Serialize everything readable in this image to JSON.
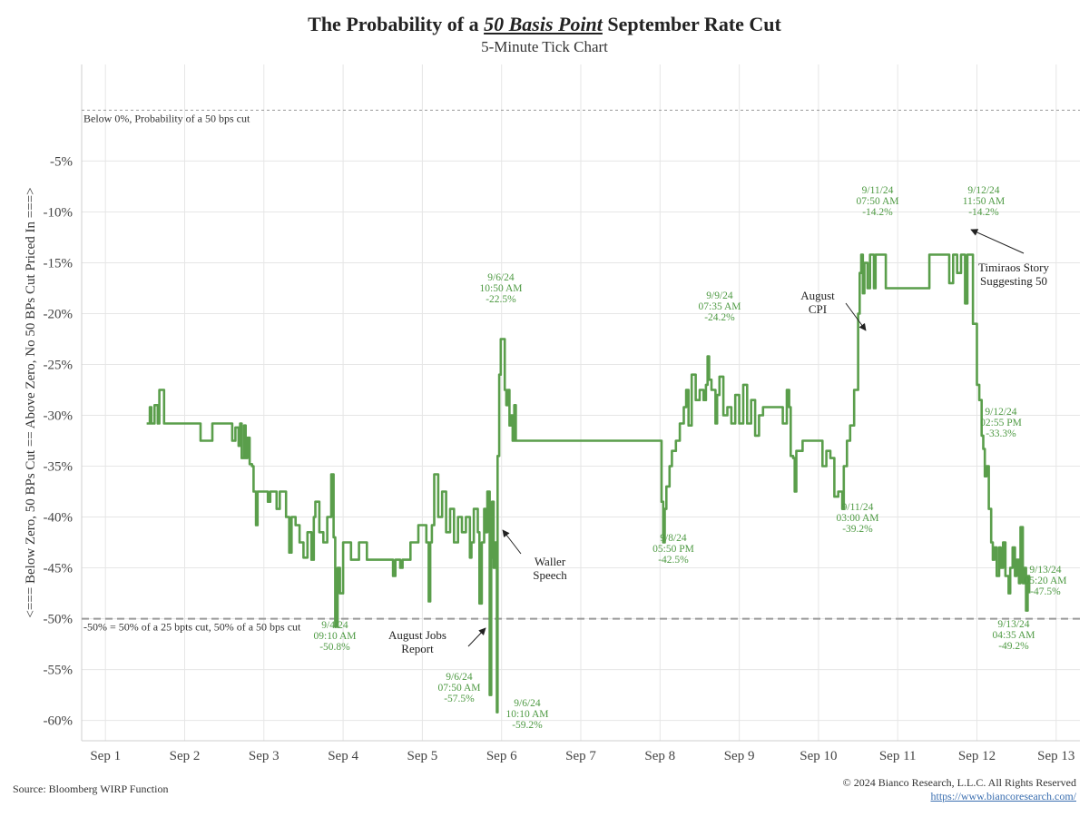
{
  "header": {
    "title_pre": "The Probability of a ",
    "title_em": "50 Basis Point",
    "title_post": " September Rate Cut",
    "subtitle": "5-Minute Tick Chart"
  },
  "footer": {
    "source": "Source: Bloomberg WIRP Function",
    "copyright": "© 2024 Bianco Research, L.L.C. All Rights Reserved",
    "website": "https://www.biancoresearch.com/"
  },
  "colors": {
    "line": "#5a9e4b",
    "annotation": "#4e9a43",
    "refline": "#9a9a9a",
    "grid": "#e6e6e6"
  },
  "chart_data": {
    "type": "line",
    "title": "The Probability of a 50 Basis Point September Rate Cut",
    "subtitle": "5-Minute Tick Chart",
    "ylabel": "<=== Below Zero, 50 BPs Cut == Above Zero, No 50 BPs Cut Priced In ===>",
    "xlabel": "",
    "x_categories": [
      "Sep 1",
      "Sep 2",
      "Sep 3",
      "Sep 4",
      "Sep 5",
      "Sep 6",
      "Sep 7",
      "Sep 8",
      "Sep 9",
      "Sep 10",
      "Sep 11",
      "Sep 12",
      "Sep 13"
    ],
    "x_range": [
      0.7,
      13.3
    ],
    "ylim": [
      -62,
      4.5
    ],
    "y_ticks": [
      -5,
      -10,
      -15,
      -20,
      -25,
      -30,
      -35,
      -40,
      -45,
      -50,
      -55,
      -60
    ],
    "y_tick_format": "{v}%",
    "grid": true,
    "reference_lines": [
      {
        "y": 0,
        "label": "Below 0%, Probability of a 50 bps cut"
      },
      {
        "y": -50,
        "label": "-50% = 50% of a 25 bpts cut, 50% of a 50 bps cut"
      }
    ],
    "series": [
      {
        "values": [
          [
            1.52,
            -30.8
          ],
          [
            1.56,
            -30.8
          ],
          [
            1.56,
            -29.2
          ],
          [
            1.58,
            -30.8
          ],
          [
            1.62,
            -30.8
          ],
          [
            1.62,
            -29.0
          ],
          [
            1.66,
            -30.8
          ],
          [
            1.68,
            -27.5
          ],
          [
            1.74,
            -27.5
          ],
          [
            1.74,
            -30.8
          ],
          [
            2.0,
            -30.8
          ],
          [
            2.2,
            -30.8
          ],
          [
            2.2,
            -32.5
          ],
          [
            2.35,
            -32.5
          ],
          [
            2.35,
            -30.8
          ],
          [
            2.6,
            -30.8
          ],
          [
            2.6,
            -32.5
          ],
          [
            2.64,
            -31.2
          ],
          [
            2.68,
            -33.0
          ],
          [
            2.7,
            -30.8
          ],
          [
            2.72,
            -34.2
          ],
          [
            2.75,
            -31.0
          ],
          [
            2.77,
            -34.2
          ],
          [
            2.79,
            -32.2
          ],
          [
            2.82,
            -34.8
          ],
          [
            2.85,
            -35.0
          ],
          [
            2.87,
            -37.5
          ],
          [
            2.9,
            -40.8
          ],
          [
            2.92,
            -37.5
          ],
          [
            3.0,
            -37.5
          ],
          [
            3.05,
            -38.5
          ],
          [
            3.08,
            -37.5
          ],
          [
            3.12,
            -37.5
          ],
          [
            3.16,
            -39.2
          ],
          [
            3.2,
            -37.5
          ],
          [
            3.25,
            -37.5
          ],
          [
            3.28,
            -40.0
          ],
          [
            3.32,
            -43.5
          ],
          [
            3.35,
            -40.0
          ],
          [
            3.4,
            -40.8
          ],
          [
            3.45,
            -42.5
          ],
          [
            3.5,
            -44.0
          ],
          [
            3.55,
            -41.5
          ],
          [
            3.6,
            -44.2
          ],
          [
            3.63,
            -40.0
          ],
          [
            3.65,
            -38.5
          ],
          [
            3.7,
            -41.5
          ],
          [
            3.75,
            -42.5
          ],
          [
            3.8,
            -40.0
          ],
          [
            3.85,
            -35.8
          ],
          [
            3.88,
            -42.0
          ],
          [
            3.9,
            -50.8
          ],
          [
            3.93,
            -45.0
          ],
          [
            3.96,
            -47.5
          ],
          [
            4.0,
            -42.5
          ],
          [
            4.05,
            -42.5
          ],
          [
            4.1,
            -44.2
          ],
          [
            4.2,
            -42.5
          ],
          [
            4.3,
            -44.2
          ],
          [
            4.5,
            -44.2
          ],
          [
            4.6,
            -44.2
          ],
          [
            4.63,
            -45.8
          ],
          [
            4.66,
            -44.2
          ],
          [
            4.7,
            -44.2
          ],
          [
            4.72,
            -45.0
          ],
          [
            4.75,
            -44.2
          ],
          [
            4.8,
            -44.2
          ],
          [
            4.85,
            -42.5
          ],
          [
            4.9,
            -42.5
          ],
          [
            4.95,
            -40.8
          ],
          [
            5.0,
            -40.8
          ],
          [
            5.05,
            -42.5
          ],
          [
            5.08,
            -48.3
          ],
          [
            5.1,
            -42.5
          ],
          [
            5.12,
            -40.8
          ],
          [
            5.15,
            -35.8
          ],
          [
            5.2,
            -40.0
          ],
          [
            5.25,
            -37.5
          ],
          [
            5.3,
            -41.5
          ],
          [
            5.35,
            -39.2
          ],
          [
            5.4,
            -42.5
          ],
          [
            5.45,
            -40.0
          ],
          [
            5.5,
            -41.5
          ],
          [
            5.55,
            -40.0
          ],
          [
            5.6,
            -44.0
          ],
          [
            5.62,
            -42.5
          ],
          [
            5.65,
            -39.2
          ],
          [
            5.7,
            -41.5
          ],
          [
            5.72,
            -48.5
          ],
          [
            5.75,
            -42.5
          ],
          [
            5.78,
            -39.2
          ],
          [
            5.8,
            -41.5
          ],
          [
            5.82,
            -37.5
          ],
          [
            5.85,
            -57.5
          ],
          [
            5.87,
            -44.0
          ],
          [
            5.88,
            -38.5
          ],
          [
            5.9,
            -45.0
          ],
          [
            5.92,
            -42.5
          ],
          [
            5.94,
            -59.2
          ],
          [
            5.95,
            -34.0
          ],
          [
            5.97,
            -26.0
          ],
          [
            5.99,
            -22.5
          ],
          [
            6.02,
            -22.5
          ],
          [
            6.04,
            -27.5
          ],
          [
            6.06,
            -29.0
          ],
          [
            6.08,
            -27.5
          ],
          [
            6.1,
            -31.0
          ],
          [
            6.12,
            -30.0
          ],
          [
            6.14,
            -32.5
          ],
          [
            6.16,
            -29.0
          ],
          [
            6.18,
            -32.5
          ],
          [
            6.5,
            -32.5
          ],
          [
            7.0,
            -32.5
          ],
          [
            7.5,
            -32.5
          ],
          [
            8.0,
            -32.5
          ],
          [
            8.02,
            -38.5
          ],
          [
            8.04,
            -42.5
          ],
          [
            8.06,
            -39.2
          ],
          [
            8.08,
            -37.0
          ],
          [
            8.12,
            -35.0
          ],
          [
            8.15,
            -33.5
          ],
          [
            8.2,
            -32.5
          ],
          [
            8.25,
            -30.8
          ],
          [
            8.3,
            -29.2
          ],
          [
            8.33,
            -27.5
          ],
          [
            8.36,
            -31.0
          ],
          [
            8.4,
            -26.0
          ],
          [
            8.45,
            -28.5
          ],
          [
            8.5,
            -27.5
          ],
          [
            8.55,
            -28.5
          ],
          [
            8.58,
            -27.0
          ],
          [
            8.6,
            -24.2
          ],
          [
            8.62,
            -26.5
          ],
          [
            8.65,
            -27.5
          ],
          [
            8.7,
            -30.8
          ],
          [
            8.72,
            -28.0
          ],
          [
            8.75,
            -26.2
          ],
          [
            8.8,
            -30.0
          ],
          [
            8.85,
            -29.2
          ],
          [
            8.9,
            -30.8
          ],
          [
            8.95,
            -28.0
          ],
          [
            9.0,
            -30.8
          ],
          [
            9.05,
            -27.0
          ],
          [
            9.1,
            -30.8
          ],
          [
            9.15,
            -28.5
          ],
          [
            9.2,
            -32.0
          ],
          [
            9.25,
            -30.0
          ],
          [
            9.3,
            -29.2
          ],
          [
            9.4,
            -29.2
          ],
          [
            9.5,
            -29.2
          ],
          [
            9.55,
            -30.8
          ],
          [
            9.6,
            -27.5
          ],
          [
            9.63,
            -29.2
          ],
          [
            9.65,
            -34.0
          ],
          [
            9.68,
            -34.2
          ],
          [
            9.7,
            -37.5
          ],
          [
            9.72,
            -33.5
          ],
          [
            9.75,
            -33.5
          ],
          [
            9.8,
            -32.5
          ],
          [
            9.9,
            -32.5
          ],
          [
            10.0,
            -32.5
          ],
          [
            10.05,
            -35.0
          ],
          [
            10.1,
            -33.5
          ],
          [
            10.15,
            -34.2
          ],
          [
            10.2,
            -38.0
          ],
          [
            10.25,
            -37.5
          ],
          [
            10.3,
            -39.2
          ],
          [
            10.32,
            -35.0
          ],
          [
            10.36,
            -32.5
          ],
          [
            10.4,
            -31.0
          ],
          [
            10.45,
            -27.5
          ],
          [
            10.5,
            -20.0
          ],
          [
            10.52,
            -16.0
          ],
          [
            10.54,
            -14.2
          ],
          [
            10.56,
            -18.0
          ],
          [
            10.58,
            -15.0
          ],
          [
            10.62,
            -17.5
          ],
          [
            10.65,
            -14.2
          ],
          [
            10.7,
            -17.5
          ],
          [
            10.72,
            -14.2
          ],
          [
            10.8,
            -14.2
          ],
          [
            10.85,
            -17.5
          ],
          [
            11.0,
            -17.5
          ],
          [
            11.2,
            -17.5
          ],
          [
            11.4,
            -14.2
          ],
          [
            11.6,
            -14.2
          ],
          [
            11.65,
            -17.0
          ],
          [
            11.7,
            -14.2
          ],
          [
            11.75,
            -16.0
          ],
          [
            11.8,
            -14.2
          ],
          [
            11.85,
            -19.0
          ],
          [
            11.88,
            -14.2
          ],
          [
            11.92,
            -14.2
          ],
          [
            11.95,
            -21.0
          ],
          [
            12.0,
            -27.0
          ],
          [
            12.03,
            -28.5
          ],
          [
            12.06,
            -32.0
          ],
          [
            12.08,
            -33.3
          ],
          [
            12.1,
            -36.0
          ],
          [
            12.12,
            -35.0
          ],
          [
            12.15,
            -39.2
          ],
          [
            12.18,
            -42.5
          ],
          [
            12.2,
            -44.2
          ],
          [
            12.22,
            -43.0
          ],
          [
            12.25,
            -45.8
          ],
          [
            12.28,
            -43.0
          ],
          [
            12.3,
            -45.0
          ],
          [
            12.33,
            -42.5
          ],
          [
            12.36,
            -45.8
          ],
          [
            12.4,
            -47.5
          ],
          [
            12.42,
            -45.0
          ],
          [
            12.45,
            -43.0
          ],
          [
            12.48,
            -45.8
          ],
          [
            12.5,
            -44.2
          ],
          [
            12.53,
            -46.5
          ],
          [
            12.55,
            -41.0
          ],
          [
            12.58,
            -46.5
          ],
          [
            12.6,
            -45.0
          ],
          [
            12.62,
            -49.2
          ],
          [
            12.64,
            -45.8
          ],
          [
            12.66,
            -47.5
          ]
        ]
      }
    ],
    "annotations": [
      {
        "date": "9/6/24",
        "time": "10:50 AM",
        "value": "-22.5%"
      },
      {
        "date": "9/9/24",
        "time": "07:35 AM",
        "value": "-24.2%"
      },
      {
        "date": "9/11/24",
        "time": "07:50 AM",
        "value": "-14.2%"
      },
      {
        "date": "9/12/24",
        "time": "11:50 AM",
        "value": "-14.2%"
      },
      {
        "date": "9/12/24",
        "time": "02:55 PM",
        "value": "-33.3%"
      },
      {
        "date": "9/11/24",
        "time": "03:00 AM",
        "value": "-39.2%"
      },
      {
        "date": "9/8/24",
        "time": "05:50 PM",
        "value": "-42.5%"
      },
      {
        "date": "9/4/24",
        "time": "09:10 AM",
        "value": "-50.8%"
      },
      {
        "date": "9/6/24",
        "time": "07:50 AM",
        "value": "-57.5%"
      },
      {
        "date": "9/6/24",
        "time": "10:10 AM",
        "value": "-59.2%"
      },
      {
        "date": "9/13/24",
        "time": "05:20 AM",
        "value": "-47.5%"
      },
      {
        "date": "9/13/24",
        "time": "04:35 AM",
        "value": "-49.2%"
      }
    ],
    "events": [
      {
        "lines": [
          "Timiraos Story",
          "Suggesting 50"
        ]
      },
      {
        "lines": [
          "August",
          "CPI"
        ]
      },
      {
        "lines": [
          "Waller",
          "Speech"
        ]
      },
      {
        "lines": [
          "August Jobs",
          "Report"
        ]
      }
    ]
  }
}
